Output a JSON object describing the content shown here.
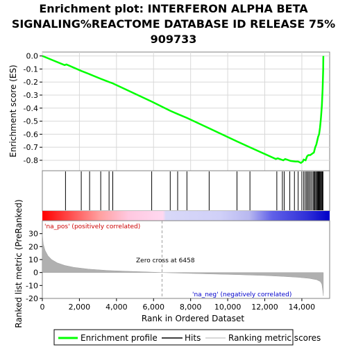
{
  "title_lines": [
    "Enrichment plot: INTERFERON ALPHA BETA",
    "SIGNALING%REACTOME DATABASE ID RELEASE 75%",
    "909733"
  ],
  "chart_data": {
    "type": "line",
    "es_panel": {
      "ylabel": "Enrichment score (ES)",
      "ylim": [
        -0.88,
        0.03
      ],
      "yticks": [
        0.0,
        -0.1,
        -0.2,
        -0.3,
        -0.4,
        -0.5,
        -0.6,
        -0.7,
        -0.8
      ],
      "ytick_labels": [
        "0.0",
        "-0.1",
        "-0.2",
        "-0.3",
        "-0.4",
        "-0.5",
        "-0.6",
        "-0.7",
        "-0.8"
      ],
      "series": [
        {
          "name": "Enrichment profile",
          "color": "#00ff00",
          "x": [
            0,
            1200,
            1300,
            2100,
            2550,
            3150,
            3600,
            3800,
            5900,
            6900,
            7300,
            7800,
            9000,
            10500,
            11200,
            12600,
            12700,
            13000,
            13100,
            13400,
            13650,
            13800,
            13950,
            14050,
            14100,
            14200,
            14280,
            14350,
            14450,
            14550,
            14650,
            14720,
            14780,
            14830,
            14880,
            14930,
            14980,
            15030,
            15080,
            15120,
            15150,
            15160
          ],
          "y": [
            0.0,
            -0.07,
            -0.065,
            -0.115,
            -0.14,
            -0.175,
            -0.2,
            -0.21,
            -0.35,
            -0.42,
            -0.445,
            -0.475,
            -0.555,
            -0.655,
            -0.7,
            -0.79,
            -0.785,
            -0.8,
            -0.79,
            -0.805,
            -0.81,
            -0.81,
            -0.82,
            -0.81,
            -0.795,
            -0.8,
            -0.77,
            -0.76,
            -0.76,
            -0.75,
            -0.74,
            -0.7,
            -0.68,
            -0.65,
            -0.62,
            -0.6,
            -0.55,
            -0.48,
            -0.38,
            -0.25,
            -0.1,
            0.0
          ]
        }
      ]
    },
    "hits_panel": {
      "hits": [
        1250,
        2100,
        2550,
        3150,
        3600,
        3800,
        5900,
        6900,
        7300,
        7800,
        9000,
        10500,
        11200,
        12650,
        12950,
        13050,
        13350,
        13600,
        13800,
        14000,
        14100,
        14180,
        14250,
        14320,
        14380,
        14450,
        14520,
        14600,
        14650,
        14700,
        14750,
        14800,
        14840,
        14880,
        14920,
        14960,
        15000,
        15040,
        15080,
        15110,
        15140
      ]
    },
    "rank_bar": {
      "pos_label": "'na_pos' (positively correlated)",
      "neg_label": "'na_neg' (negatively correlated)",
      "zero_cross_label": "Zero cross at 6458",
      "zero_cross": 6458
    },
    "metric_panel": {
      "ylabel": "Ranked list metric (PreRanked)",
      "ylim": [
        -20,
        40
      ],
      "yticks": [
        30,
        20,
        10,
        0,
        -10,
        -20
      ],
      "ytick_labels": [
        "30",
        "20",
        "10",
        "0",
        "-10",
        "-20"
      ],
      "x": [
        0,
        50,
        150,
        300,
        500,
        800,
        1200,
        1700,
        2500,
        3500,
        4500,
        5500,
        6458,
        7500,
        9000,
        10500,
        12000,
        13000,
        13800,
        14400,
        14800,
        15000,
        15080,
        15130,
        15160
      ],
      "y": [
        30,
        22,
        17,
        13,
        10,
        7.5,
        5.5,
        4,
        2.6,
        1.6,
        1,
        0.5,
        0,
        -0.5,
        -1.1,
        -1.6,
        -2.3,
        -3,
        -3.7,
        -4.5,
        -5.6,
        -7,
        -9,
        -14,
        -18
      ]
    },
    "xlabel": "Rank in Ordered Dataset",
    "xlim": [
      0,
      15500
    ],
    "xticks": [
      0,
      2000,
      4000,
      6000,
      8000,
      10000,
      12000,
      14000
    ],
    "xtick_labels": [
      "0",
      "2,000",
      "4,000",
      "6,000",
      "8,000",
      "10,000",
      "12,000",
      "14,000"
    ],
    "n_genes": 15160
  },
  "legend": {
    "items": [
      {
        "label": "Enrichment profile",
        "color": "#00ff00"
      },
      {
        "label": "Hits",
        "color": "#000000"
      },
      {
        "label": "Ranking metric scores",
        "color": "#cccccc"
      }
    ]
  }
}
